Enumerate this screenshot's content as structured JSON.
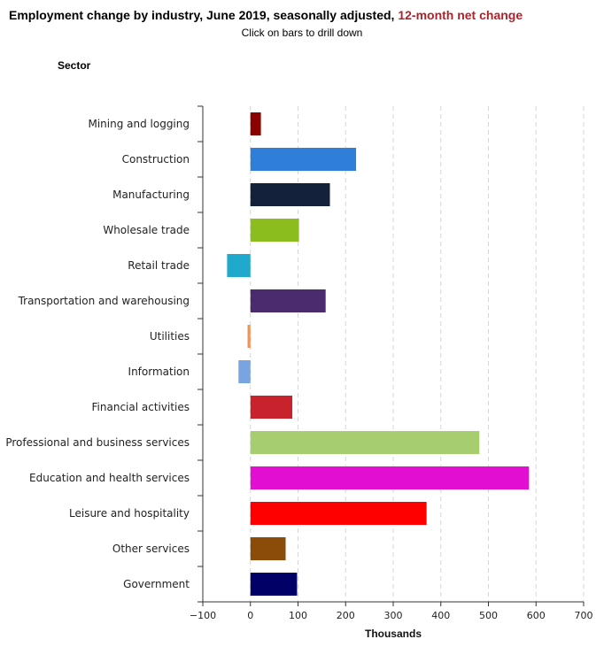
{
  "header": {
    "title_main": "Employment change by industry, June 2019, seasonally adjusted,",
    "title_accent": "12-month net change",
    "subtitle": "Click on bars to drill down",
    "y_axis_heading": "Sector"
  },
  "colors": {
    "title_accent": "#b0222a",
    "grid": "#d5d5d5",
    "axis": "#333333"
  },
  "chart_data": {
    "type": "bar",
    "orientation": "horizontal",
    "title": "Employment change by industry, June 2019, seasonally adjusted, 12-month net change",
    "subtitle": "Click on bars to drill down",
    "xlabel": "Thousands",
    "ylabel": "Sector",
    "xlim": [
      -100,
      700
    ],
    "xticks": [
      -100,
      0,
      100,
      200,
      300,
      400,
      500,
      600,
      700
    ],
    "xtick_labels": [
      "−100",
      "0",
      "100",
      "200",
      "300",
      "400",
      "500",
      "600",
      "700"
    ],
    "grid": "vertical dashed",
    "categories": [
      "Mining and logging",
      "Construction",
      "Manufacturing",
      "Wholesale trade",
      "Retail trade",
      "Transportation and warehousing",
      "Utilities",
      "Information",
      "Financial activities",
      "Professional and business services",
      "Education and health services",
      "Leisure and hospitality",
      "Other services",
      "Government"
    ],
    "values": [
      22,
      222,
      167,
      102,
      -49,
      158,
      -6,
      -25,
      88,
      481,
      585,
      370,
      74,
      98
    ],
    "colors": [
      "#8b0000",
      "#2f7fd9",
      "#14213a",
      "#8cbd1e",
      "#1ea9cd",
      "#4b2a6e",
      "#f0935a",
      "#79a4e2",
      "#c8222c",
      "#a6cd6e",
      "#e20fd2",
      "#ff0000",
      "#8b4c09",
      "#000066"
    ]
  }
}
